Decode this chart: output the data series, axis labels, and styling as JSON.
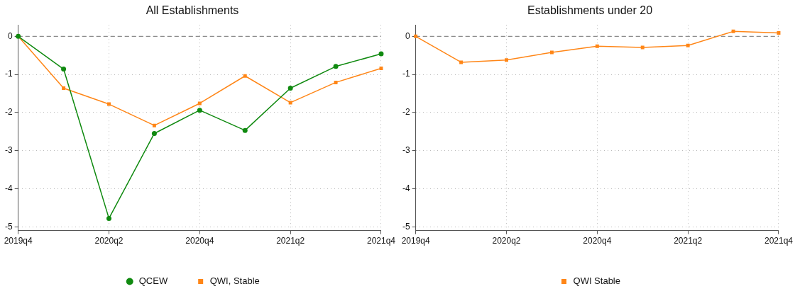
{
  "chart_data": [
    {
      "type": "line",
      "title": "All Establishments",
      "categories": [
        "2019q4",
        null,
        "2020q2",
        null,
        "2020q4",
        null,
        "2021q2",
        null,
        "2021q4"
      ],
      "series": [
        {
          "name": "QCEW",
          "color": "#108a10",
          "marker": "circle",
          "values": [
            0,
            -0.86,
            -4.78,
            -2.55,
            -1.94,
            -2.47,
            -1.36,
            -0.79,
            -0.46
          ]
        },
        {
          "name": "QWI, Stable",
          "color": "#ff8617",
          "marker": "square",
          "values": [
            0,
            -1.36,
            -1.78,
            -2.34,
            -1.76,
            -1.04,
            -1.74,
            -1.21,
            -0.84
          ]
        }
      ],
      "ylim": [
        -5.1,
        0.3
      ],
      "yticks": [
        0,
        -1,
        -2,
        -3,
        -4,
        -5
      ],
      "grid": true,
      "legend": "bottom",
      "line_style": "solid",
      "ref_lines": [
        {
          "axis": "y",
          "value": 0,
          "color": "#8c8c8c",
          "line_style": "dashed"
        }
      ]
    },
    {
      "type": "line",
      "title": "Establishments under 20",
      "categories": [
        "2019q4",
        null,
        "2020q2",
        null,
        "2020q4",
        null,
        "2021q2",
        null,
        "2021q4"
      ],
      "series": [
        {
          "name": "QWI Stable",
          "color": "#ff8617",
          "marker": "square",
          "values": [
            0,
            -0.68,
            -0.62,
            -0.42,
            -0.26,
            -0.29,
            -0.24,
            0.13,
            0.09
          ]
        }
      ],
      "ylim": [
        -5.1,
        0.3
      ],
      "yticks": [
        0,
        -1,
        -2,
        -3,
        -4,
        -5
      ],
      "grid": true,
      "legend": "bottom",
      "line_style": "solid",
      "ref_lines": [
        {
          "axis": "y",
          "value": 0,
          "color": "#8c8c8c",
          "line_style": "dashed"
        }
      ]
    }
  ]
}
